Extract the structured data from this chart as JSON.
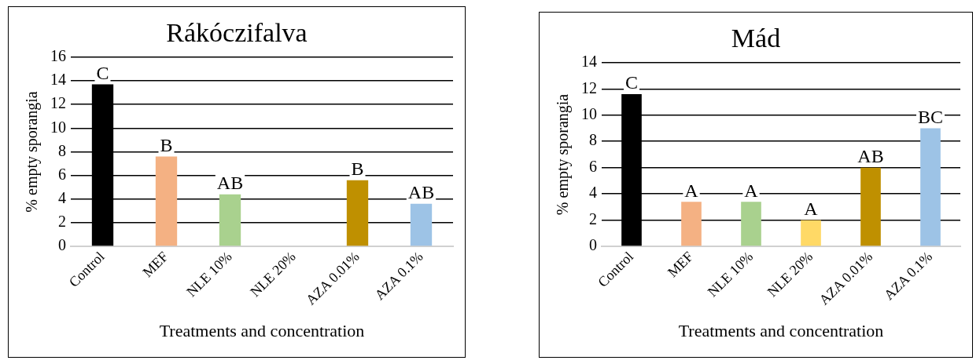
{
  "chart_data": [
    {
      "type": "bar",
      "title": "Rákóczifalva",
      "xlabel": "Treatments and concentration",
      "ylabel": "% empty sporangia",
      "categories": [
        "Control",
        "MEF",
        "NLE 10%",
        "NLE 20%",
        "AZA 0.01%",
        "AZA 0.1%"
      ],
      "values": [
        13.7,
        7.6,
        4.4,
        null,
        5.6,
        3.6
      ],
      "colors": [
        "#000000",
        "#f4b183",
        "#a9d18e",
        "#ffd966",
        "#bf9000",
        "#9dc3e6"
      ],
      "ylim": [
        0,
        16
      ],
      "yticks": [
        0,
        2,
        4,
        6,
        8,
        10,
        12,
        14,
        16
      ],
      "grid": "y",
      "annotations": [
        {
          "text": "C",
          "x": "Control",
          "y": 13.7
        },
        {
          "text": "B",
          "x": "MEF",
          "y": 7.6
        },
        {
          "text": "AB",
          "x": "NLE 10%",
          "y": 4.4
        },
        {
          "text": "B",
          "x": "AZA 0.01%",
          "y": 5.6
        },
        {
          "text": "AB",
          "x": "AZA 0.1%",
          "y": 3.6
        }
      ]
    },
    {
      "type": "bar",
      "title": "Mád",
      "xlabel": "Treatments and concentration",
      "ylabel": "% empty sporangia",
      "categories": [
        "Control",
        "MEF",
        "NLE 10%",
        "NLE 20%",
        "AZA 0.01%",
        "AZA 0.1%"
      ],
      "values": [
        11.6,
        3.4,
        3.4,
        2.0,
        6.0,
        9.0
      ],
      "colors": [
        "#000000",
        "#f4b183",
        "#a9d18e",
        "#ffd966",
        "#bf9000",
        "#9dc3e6"
      ],
      "ylim": [
        0,
        14
      ],
      "yticks": [
        0,
        2,
        4,
        6,
        8,
        10,
        12,
        14
      ],
      "grid": "y",
      "annotations": [
        {
          "text": "C",
          "x": "Control",
          "y": 11.6
        },
        {
          "text": "A",
          "x": "MEF",
          "y": 3.4
        },
        {
          "text": "A",
          "x": "NLE 10%",
          "y": 3.4
        },
        {
          "text": "A",
          "x": "NLE 20%",
          "y": 2.0
        },
        {
          "text": "AB",
          "x": "AZA 0.01%",
          "y": 6.0
        },
        {
          "text": "BC",
          "x": "AZA 0.1%",
          "y": 9.0
        }
      ]
    }
  ]
}
